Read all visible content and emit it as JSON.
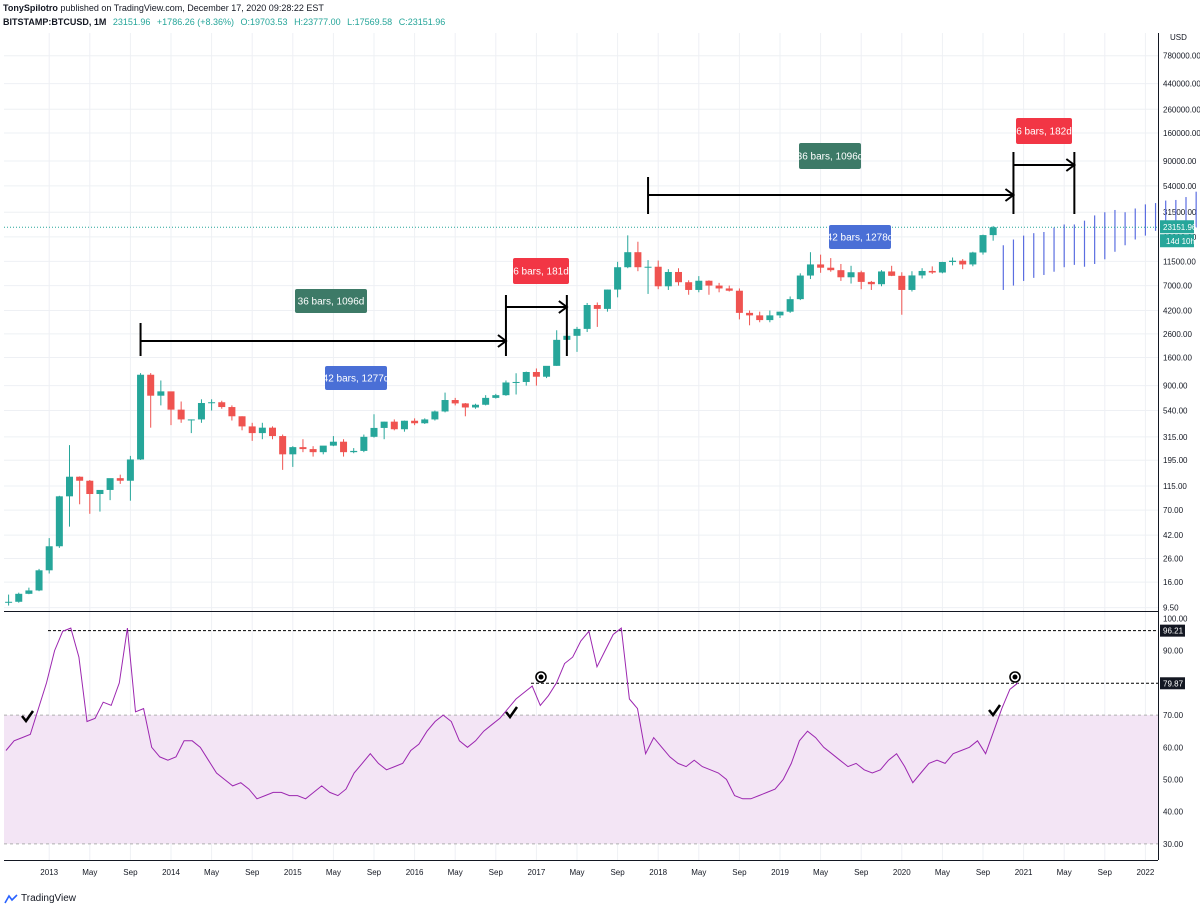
{
  "header": {
    "author": "TonySpilotro",
    "published": "published on TradingView.com, December 17, 2020 09:28:22 EST",
    "symbol": "BITSTAMP:BTCUSD, 1M",
    "price": "23151.96",
    "change": "+1786.26 (+8.36%)",
    "open": "O:19703.53",
    "high": "H:23777.00",
    "low": "L:17569.58",
    "close": "C:23151.96"
  },
  "footer": {
    "brand": "TradingView"
  },
  "colors": {
    "up": "#26a69a",
    "down": "#ef5350",
    "projection": "#5b6ee1",
    "rsi": "#9c27b0",
    "rsi_band": "#f3e5f5",
    "box_green": "#3d7a67",
    "box_red": "#f23645",
    "box_blue": "#4a6fd6"
  },
  "chart_data": [
    {
      "type": "candlestick",
      "title": "",
      "scale": "log",
      "currency_label": "USD",
      "price_ticks": [
        "780000.00",
        "440000.00",
        "260000.00",
        "160000.00",
        "90000.00",
        "54000.00",
        "31500.00",
        "19000.00",
        "11500.00",
        "7000.00",
        "4200.00",
        "2600.00",
        "1600.00",
        "900.00",
        "540.00",
        "315.00",
        "195.00",
        "115.00",
        "70.00",
        "42.00",
        "26.00",
        "16.00",
        "9.50"
      ],
      "last_price_tag": "23151.96",
      "countdown_tag": "14d 10h",
      "x_ticks": [
        "2013",
        "May",
        "Sep",
        "2014",
        "May",
        "Sep",
        "2015",
        "May",
        "Sep",
        "2016",
        "May",
        "Sep",
        "2017",
        "May",
        "Sep",
        "2018",
        "May",
        "Sep",
        "2019",
        "May",
        "Sep",
        "2020",
        "May",
        "Sep",
        "2021",
        "May",
        "Sep",
        "2022"
      ],
      "start": "2012-09",
      "candles": [
        [
          10.6,
          12.4,
          9.9,
          10.7
        ],
        [
          10.7,
          12.9,
          10.5,
          12.6
        ],
        [
          12.6,
          14.3,
          12.5,
          13.5
        ],
        [
          13.5,
          21.0,
          13.3,
          20.4
        ],
        [
          20.4,
          39.5,
          19.1,
          33.4
        ],
        [
          33.4,
          94.0,
          32.3,
          93.0
        ],
        [
          93.0,
          266.0,
          50.0,
          139.0
        ],
        [
          139.0,
          140.0,
          79.0,
          128.0
        ],
        [
          128.0,
          130.0,
          65.0,
          97.5
        ],
        [
          97.5,
          100.0,
          68.0,
          106.0
        ],
        [
          106.0,
          121.0,
          86.0,
          135.0
        ],
        [
          135.0,
          145.0,
          120.0,
          128.0
        ],
        [
          128.0,
          213.0,
          85.0,
          198.0
        ],
        [
          198.0,
          1163.0,
          196.0,
          1125.0
        ],
        [
          1125.0,
          1163.0,
          380.0,
          732.0
        ],
        [
          732.0,
          1000.0,
          600.0,
          800.0
        ],
        [
          800.0,
          700.0,
          400.0,
          550.0
        ],
        [
          550.0,
          650.0,
          420.0,
          450.0
        ],
        [
          450.0,
          450.0,
          340.0,
          450.0
        ],
        [
          450.0,
          680.0,
          420.0,
          630.0
        ],
        [
          630.0,
          680.0,
          540.0,
          640.0
        ],
        [
          640.0,
          660.0,
          560.0,
          580.0
        ],
        [
          580.0,
          600.0,
          440.0,
          480.0
        ],
        [
          480.0,
          480.0,
          360.0,
          390.0
        ],
        [
          390.0,
          420.0,
          290.0,
          340.0
        ],
        [
          340.0,
          420.0,
          300.0,
          380.0
        ],
        [
          380.0,
          390.0,
          300.0,
          320.0
        ],
        [
          320.0,
          330.0,
          160.0,
          220.0
        ],
        [
          220.0,
          260.0,
          170.0,
          255.0
        ],
        [
          255.0,
          300.0,
          230.0,
          245.0
        ],
        [
          245.0,
          260.0,
          210.0,
          230.0
        ],
        [
          230.0,
          245.0,
          220.0,
          263.0
        ],
        [
          263.0,
          320.0,
          260.0,
          285.0
        ],
        [
          285.0,
          300.0,
          210.0,
          230.0
        ],
        [
          230.0,
          250.0,
          225.0,
          236.0
        ],
        [
          236.0,
          330.0,
          230.0,
          315.0
        ],
        [
          315.0,
          500.0,
          310.0,
          378.0
        ],
        [
          378.0,
          430.0,
          300.0,
          430.0
        ],
        [
          430.0,
          450.0,
          360.0,
          368.0
        ],
        [
          368.0,
          440.0,
          350.0,
          438.0
        ],
        [
          438.0,
          460.0,
          400.0,
          416.0
        ],
        [
          416.0,
          460.0,
          410.0,
          450.0
        ],
        [
          450.0,
          540.0,
          440.0,
          530.0
        ],
        [
          530.0,
          780.0,
          520.0,
          670.0
        ],
        [
          670.0,
          700.0,
          600.0,
          625.0
        ],
        [
          625.0,
          630.0,
          480.0,
          575.0
        ],
        [
          575.0,
          620.0,
          560.0,
          608.0
        ],
        [
          608.0,
          740.0,
          600.0,
          700.0
        ],
        [
          700.0,
          760.0,
          690.0,
          740.0
        ],
        [
          740.0,
          1000.0,
          730.0,
          960.0
        ],
        [
          960.0,
          1160.0,
          750.0,
          970.0
        ],
        [
          970.0,
          1200.0,
          900.0,
          1190.0
        ],
        [
          1190.0,
          1280.0,
          900.0,
          1080.0
        ],
        [
          1080.0,
          1200.0,
          1050.0,
          1350.0
        ],
        [
          1350.0,
          2800.0,
          1350.0,
          2300.0
        ],
        [
          2300.0,
          3000.0,
          2100.0,
          2500.0
        ],
        [
          2500.0,
          3000.0,
          1800.0,
          2880.0
        ],
        [
          2880.0,
          4900.0,
          2700.0,
          4700.0
        ],
        [
          4700.0,
          4950.0,
          3000.0,
          4340.0
        ],
        [
          4340.0,
          6450.0,
          4100.0,
          6450.0
        ],
        [
          6450.0,
          11400.0,
          5500.0,
          10200.0
        ],
        [
          10200.0,
          19600.0,
          10000.0,
          13880.0
        ],
        [
          13880.0,
          17200.0,
          9400.0,
          10200.0
        ],
        [
          10200.0,
          11800.0,
          5900.0,
          10300.0
        ],
        [
          10300.0,
          11700.0,
          6500.0,
          6900.0
        ],
        [
          6900.0,
          9800.0,
          6400.0,
          9250.0
        ],
        [
          9250.0,
          9990.0,
          7000.0,
          7500.0
        ],
        [
          7500.0,
          7800.0,
          5800.0,
          6400.0
        ],
        [
          6400.0,
          8500.0,
          6100.0,
          7730.0
        ],
        [
          7730.0,
          7800.0,
          5800.0,
          7000.0
        ],
        [
          7000.0,
          7400.0,
          6100.0,
          6600.0
        ],
        [
          6600.0,
          7000.0,
          6200.0,
          6300.0
        ],
        [
          6300.0,
          6600.0,
          3500.0,
          4000.0
        ],
        [
          4000.0,
          4200.0,
          3100.0,
          3800.0
        ],
        [
          3800.0,
          4100.0,
          3300.0,
          3450.0
        ],
        [
          3450.0,
          4200.0,
          3300.0,
          3800.0
        ],
        [
          3800.0,
          4100.0,
          3600.0,
          4100.0
        ],
        [
          4100.0,
          5600.0,
          4000.0,
          5300.0
        ],
        [
          5300.0,
          9000.0,
          5200.0,
          8600.0
        ],
        [
          8600.0,
          13880.0,
          8000.0,
          10800.0
        ],
        [
          10800.0,
          13200.0,
          9100.0,
          10100.0
        ],
        [
          10100.0,
          12300.0,
          9300.0,
          9600.0
        ],
        [
          9600.0,
          10900.0,
          7700.0,
          8300.0
        ],
        [
          8300.0,
          10500.0,
          7300.0,
          9200.0
        ],
        [
          9200.0,
          9500.0,
          6500.0,
          7550.0
        ],
        [
          7550.0,
          7700.0,
          6400.0,
          7200.0
        ],
        [
          7200.0,
          9600.0,
          6900.0,
          9350.0
        ],
        [
          9350.0,
          10500.0,
          8500.0,
          8550.0
        ],
        [
          8550.0,
          9200.0,
          3850.0,
          6400.0
        ],
        [
          6400.0,
          9400.0,
          6200.0,
          8620.0
        ],
        [
          8620.0,
          10000.0,
          8100.0,
          9450.0
        ],
        [
          9450.0,
          10380.0,
          8900.0,
          9150.0
        ],
        [
          9150.0,
          11400.0,
          9000.0,
          11350.0
        ],
        [
          11350.0,
          12450.0,
          10600.0,
          11650.0
        ],
        [
          11650.0,
          12050.0,
          9800.0,
          10800.0
        ],
        [
          10800.0,
          14000.0,
          10400.0,
          13800.0
        ],
        [
          13800.0,
          19900.0,
          13200.0,
          19700.0
        ],
        [
          19700.0,
          23777.0,
          17570.0,
          23152.0
        ]
      ],
      "projection": [
        [
          6400,
          16000
        ],
        [
          7000,
          18000
        ],
        [
          7700,
          19500
        ],
        [
          8200,
          20500
        ],
        [
          8700,
          21000
        ],
        [
          9300,
          23000
        ],
        [
          10200,
          24500
        ],
        [
          10700,
          24500
        ],
        [
          10300,
          26500
        ],
        [
          10900,
          29500
        ],
        [
          12000,
          31500
        ],
        [
          14000,
          33000
        ],
        [
          16000,
          31500
        ],
        [
          18000,
          34000
        ],
        [
          19500,
          37000
        ],
        [
          21500,
          38000
        ],
        [
          21000,
          40000
        ],
        [
          22000,
          40500
        ],
        [
          21500,
          43000
        ],
        [
          23000,
          48000
        ]
      ],
      "annotations": [
        {
          "label": "36 bars, 1096d",
          "color": "#3d7a67"
        },
        {
          "label": "6 bars, 181d",
          "color": "#f23645"
        },
        {
          "label": "42 bars, 1277d",
          "color": "#4a6fd6"
        },
        {
          "label": "36 bars, 1096d",
          "color": "#3d7a67"
        },
        {
          "label": "6 bars, 182d",
          "color": "#f23645"
        },
        {
          "label": "42 bars, 1278d",
          "color": "#4a6fd6"
        }
      ]
    },
    {
      "type": "line",
      "title": "",
      "ylim": [
        25,
        102
      ],
      "y_ticks": [
        "100.00",
        "90.00",
        "80.00",
        "70.00",
        "60.00",
        "50.00",
        "40.00",
        "30.00"
      ],
      "band": [
        30,
        70
      ],
      "levels": [
        {
          "value": 96.21,
          "label": "96.21"
        },
        {
          "value": 79.87,
          "label": "79.87"
        }
      ],
      "values": [
        59,
        62,
        63,
        64,
        72,
        80,
        90,
        96,
        97,
        88,
        68,
        69,
        74,
        73,
        80,
        97,
        71,
        72,
        60,
        57,
        56,
        57,
        62,
        62,
        60,
        56,
        52,
        50,
        48,
        49,
        47,
        44,
        45,
        46,
        46,
        45,
        45,
        44,
        46,
        48,
        46,
        45,
        47,
        52,
        55,
        58,
        55,
        53,
        54,
        55,
        59,
        61,
        65,
        68,
        70,
        68,
        62,
        60,
        62,
        65,
        67,
        69,
        72,
        75,
        77,
        79,
        73,
        76,
        80,
        86,
        88,
        93,
        96,
        85,
        90,
        95,
        97,
        75,
        72,
        58,
        63,
        60,
        57,
        55,
        54,
        56,
        54,
        53,
        52,
        50,
        45,
        44,
        44,
        45,
        46,
        47,
        50,
        55,
        62,
        65,
        63,
        60,
        58,
        56,
        54,
        55,
        53,
        52,
        53,
        56,
        58,
        54,
        49,
        52,
        55,
        56,
        55,
        58,
        59,
        60,
        62,
        58,
        65,
        72,
        78,
        80
      ],
      "check_marks": 3,
      "peak_marks": 2
    }
  ]
}
